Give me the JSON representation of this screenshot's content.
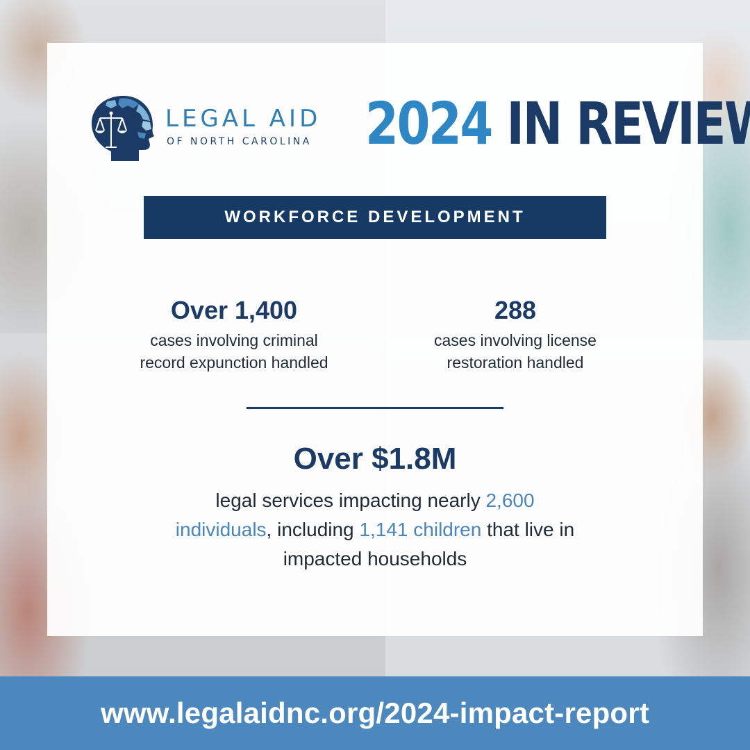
{
  "logo": {
    "name": "LEGAL AID",
    "sub": "OF NORTH CAROLINA"
  },
  "title": {
    "year": "2024",
    "rest": "IN REVIEW"
  },
  "banner": "WORKFORCE DEVELOPMENT",
  "stats": [
    {
      "value": "Over 1,400",
      "line1": "cases involving criminal",
      "line2": "record expunction handled"
    },
    {
      "value": "288",
      "line1": "cases involving license",
      "line2": "restoration handled"
    }
  ],
  "highlight": {
    "value": "Over $1.8M",
    "line1_a": "legal services impacting nearly ",
    "line1_b": "2,600",
    "line2_a": "individuals",
    "line2_b": ", including ",
    "line2_c": "1,141 children",
    "line2_d": " that live in",
    "line3": "impacted households"
  },
  "footer": {
    "url": "www.legalaidnc.org/2024-impact-report"
  },
  "colors": {
    "navy": "#173a64",
    "accent_blue": "#2f86c4",
    "highlight_blue": "#4a86bc",
    "footer_blue": "#4c87be"
  },
  "icons": {
    "logo_mark": "head-with-scales-of-justice-icon"
  }
}
